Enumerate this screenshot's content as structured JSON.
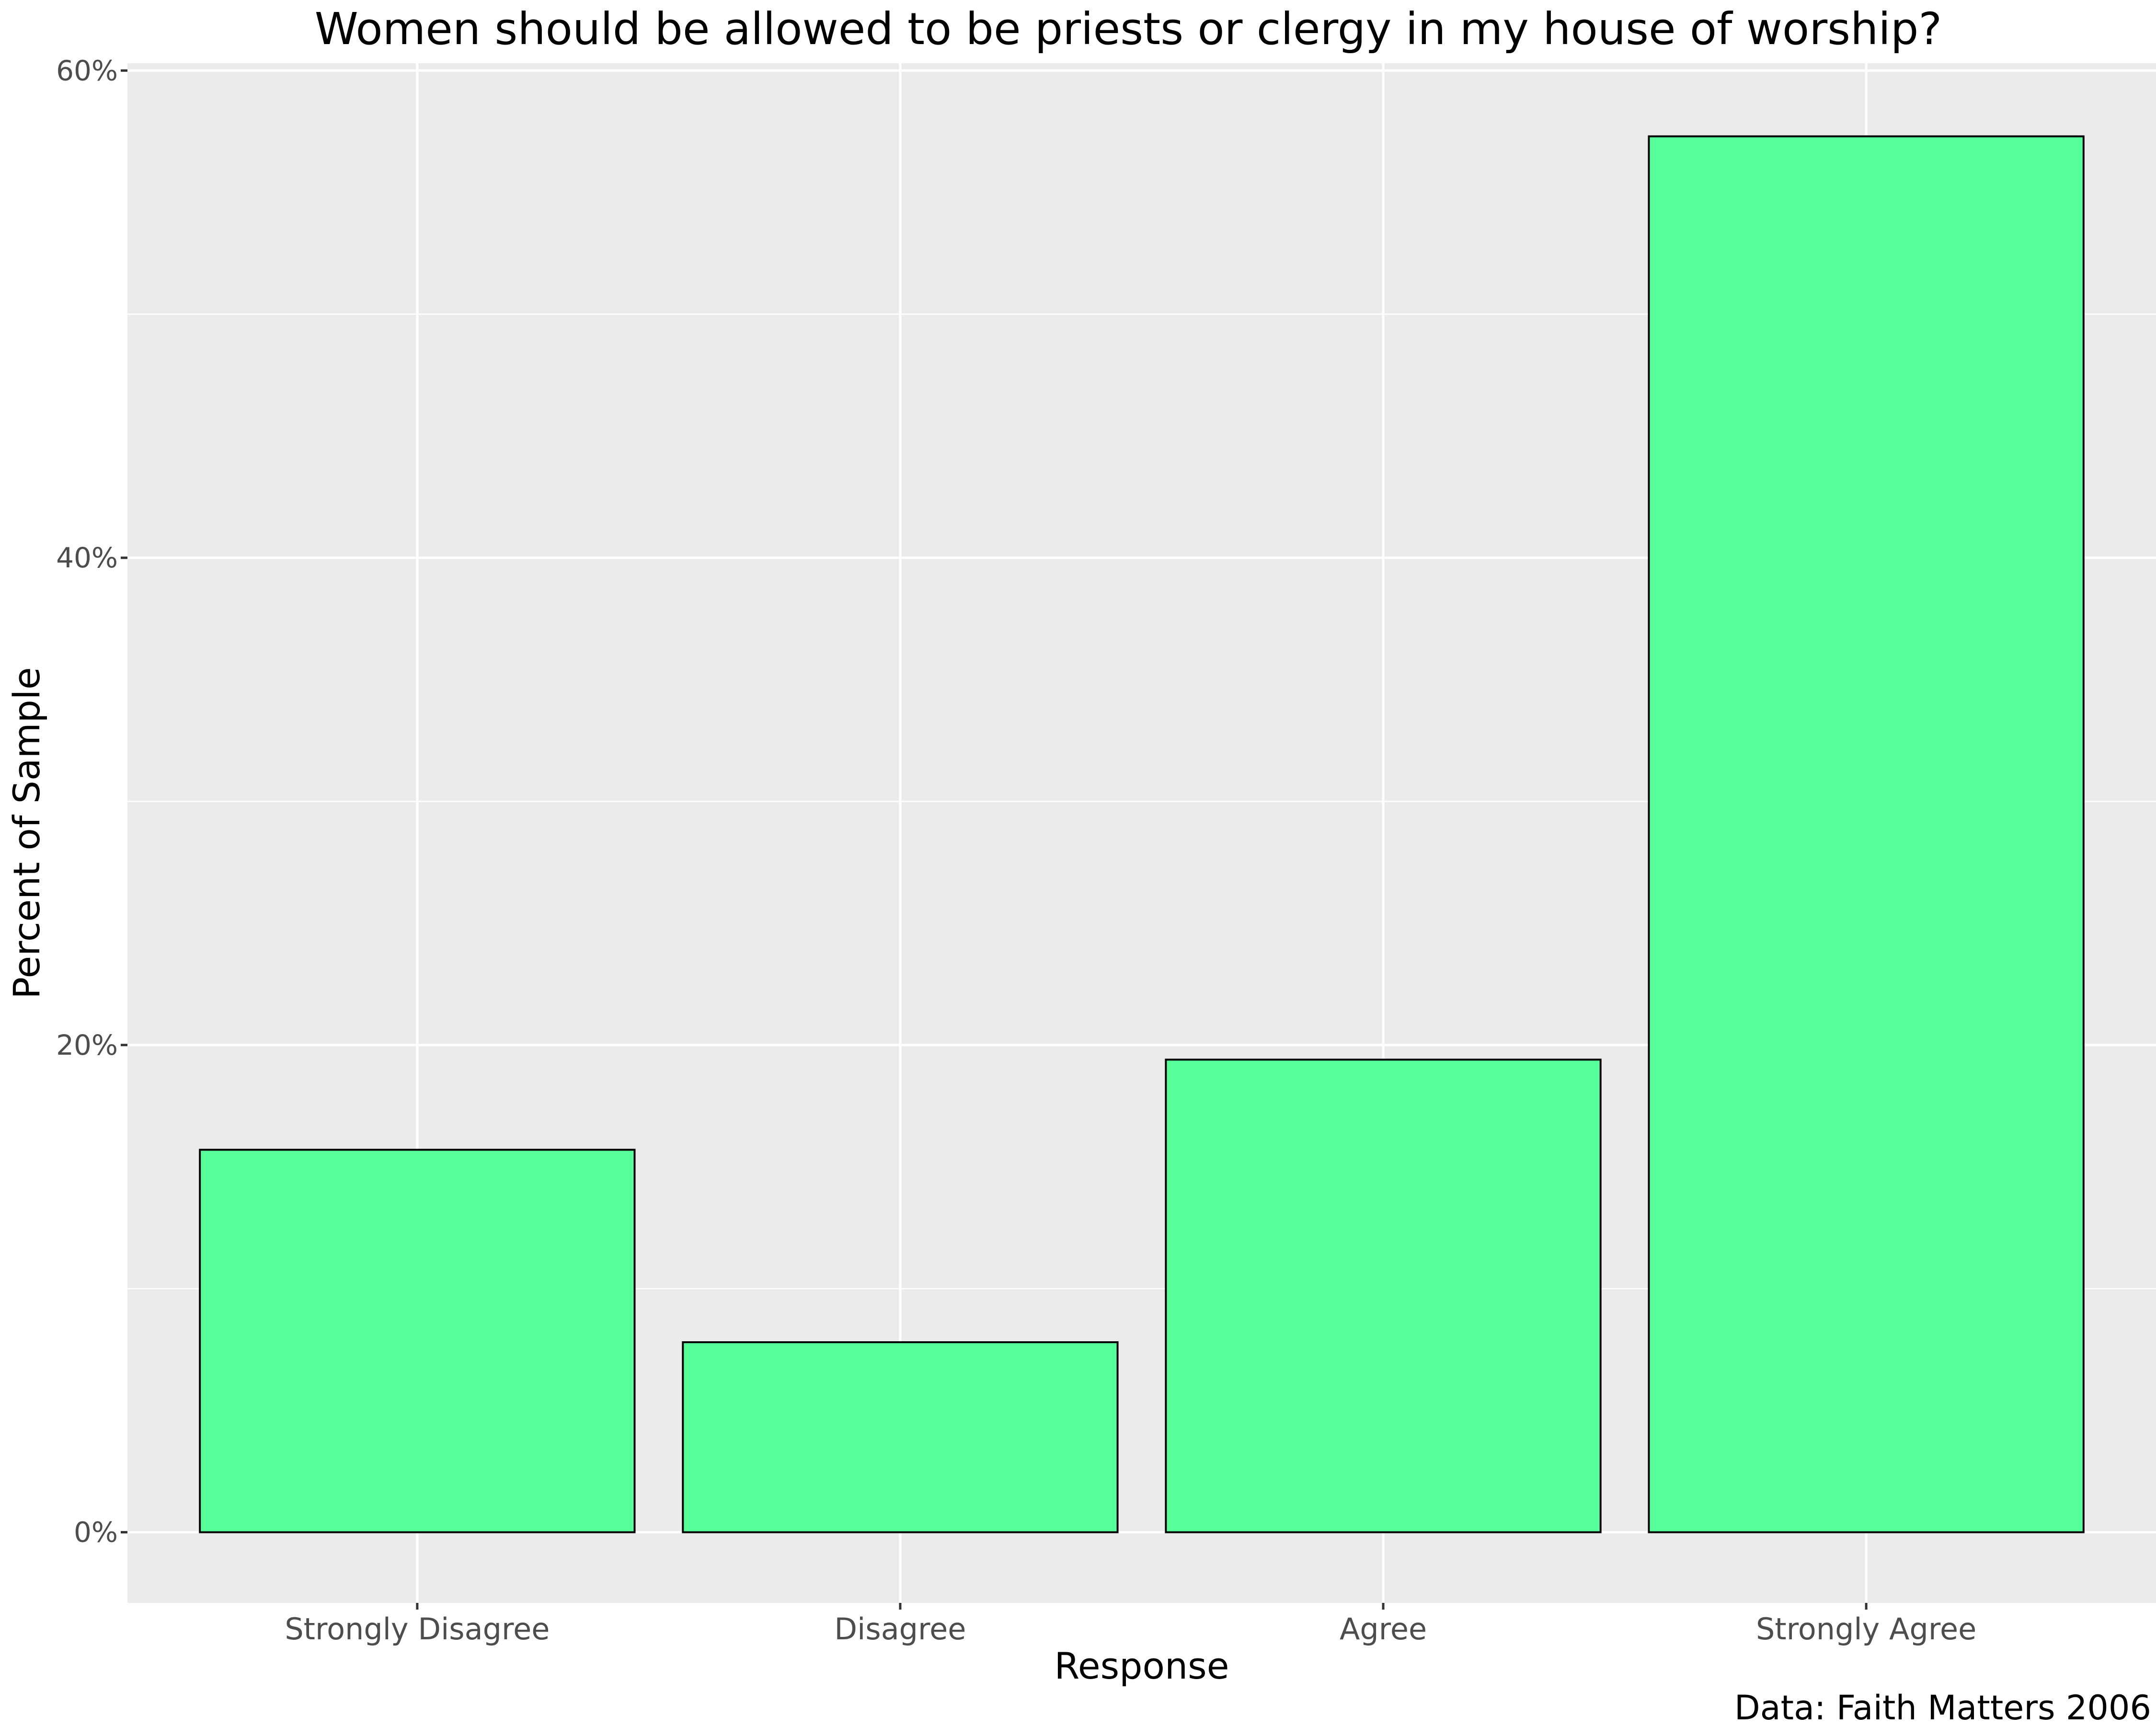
{
  "chart_data": {
    "type": "bar",
    "title": "Women should be allowed to be priests or clergy in my house of worship?",
    "xlabel": "Response",
    "ylabel": "Percent of Sample",
    "caption": "Data: Faith Matters 2006",
    "categories": [
      "Strongly Disagree",
      "Disagree",
      "Agree",
      "Strongly Agree"
    ],
    "values": [
      15.7,
      7.8,
      19.4,
      57.3
    ],
    "ylim": [
      -2.9,
      60.3
    ],
    "y_ticks": [
      0,
      20,
      40,
      60
    ],
    "y_tick_labels": [
      "0%",
      "20%",
      "40%",
      "60%"
    ],
    "grid": true,
    "legend": "none",
    "colors": {
      "bar_fill": "#57ff9a",
      "bar_stroke": "#000000",
      "panel_background": "#ebebeb",
      "grid": "#ffffff"
    }
  }
}
